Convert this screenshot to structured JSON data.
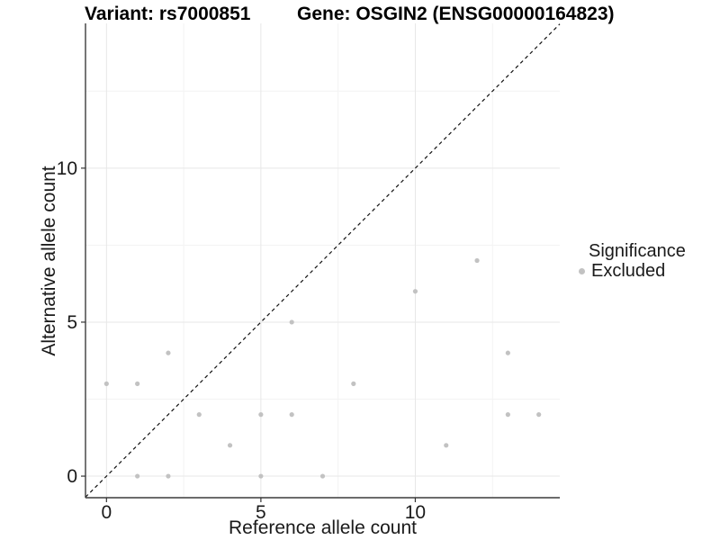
{
  "titles": {
    "left": "Variant: rs7000851",
    "right": "Gene: OSGIN2 (ENSG00000164823)"
  },
  "legend": {
    "title": "Significance",
    "items": [
      {
        "label": "Excluded",
        "color": "#c2c2c2"
      }
    ]
  },
  "chart_data": {
    "type": "scatter",
    "title": "Variant: rs7000851    Gene: OSGIN2 (ENSG00000164823)",
    "xlabel": "Reference allele count",
    "ylabel": "Alternative allele count",
    "xlim": [
      -0.68,
      14.68
    ],
    "ylim": [
      -0.7,
      14.7
    ],
    "x_ticks": [
      0,
      5,
      10
    ],
    "y_ticks": [
      0,
      5,
      10
    ],
    "x_minor_ticks": [
      2.5,
      7.5,
      12.5
    ],
    "y_minor_ticks": [
      2.5,
      7.5,
      12.5
    ],
    "grid": true,
    "legend_position": "right",
    "series": [
      {
        "name": "Excluded",
        "color": "#c2c2c2",
        "points": [
          [
            0,
            3
          ],
          [
            1,
            0
          ],
          [
            1,
            3
          ],
          [
            2,
            0
          ],
          [
            2,
            4
          ],
          [
            3,
            2
          ],
          [
            4,
            1
          ],
          [
            5,
            0
          ],
          [
            5,
            2
          ],
          [
            6,
            2
          ],
          [
            6,
            5
          ],
          [
            7,
            0
          ],
          [
            8,
            3
          ],
          [
            10,
            6
          ],
          [
            11,
            1
          ],
          [
            12,
            7
          ],
          [
            13,
            2
          ],
          [
            13,
            4
          ],
          [
            14,
            2
          ]
        ]
      }
    ],
    "reference_line": {
      "type": "identity",
      "slope": 1,
      "intercept": 0,
      "style": "dashed",
      "color": "#111111"
    }
  },
  "colors": {
    "background": "#ffffff",
    "point": "#c2c2c2",
    "grid_major": "#e7e7e7",
    "grid_minor": "#f3f3f3",
    "axis_line": "#3c3c3c",
    "tick_mark": "#333333",
    "tick_text": "#1a1a1a"
  }
}
